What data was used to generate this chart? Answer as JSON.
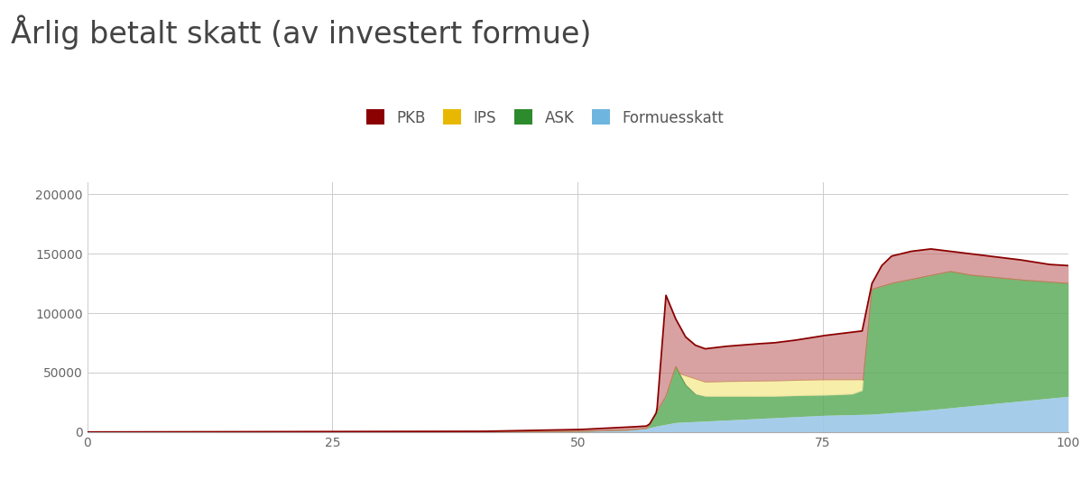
{
  "title": "Årlig betalt skatt (av investert formue)",
  "title_fontsize": 24,
  "title_color": "#444444",
  "legend_labels": [
    "PKB",
    "IPS",
    "ASK",
    "Formuesskatt"
  ],
  "pkb_line_color": "#8B0000",
  "ips_line_color": "#D4A800",
  "ask_line_color": "#2D6A2D",
  "formuesskatt_line_color": "#5B9BD5",
  "pkb_fill_color": "#C47070",
  "ips_fill_color": "#F5EDA0",
  "ask_fill_color": "#5DAD5D",
  "formuesskatt_fill_color": "#9BC8E8",
  "pkb_legend_color": "#8B0000",
  "ips_legend_color": "#E8B800",
  "ask_legend_color": "#2D8B2D",
  "formuesskatt_legend_color": "#6EB5E0",
  "xlim": [
    0,
    100
  ],
  "ylim": [
    0,
    210000
  ],
  "yticks": [
    0,
    50000,
    100000,
    150000,
    200000
  ],
  "xticks": [
    0,
    25,
    50,
    75,
    100
  ],
  "grid_color": "#CCCCCC",
  "background_color": "#FFFFFF",
  "figsize": [
    12.08,
    5.32
  ],
  "dpi": 100
}
